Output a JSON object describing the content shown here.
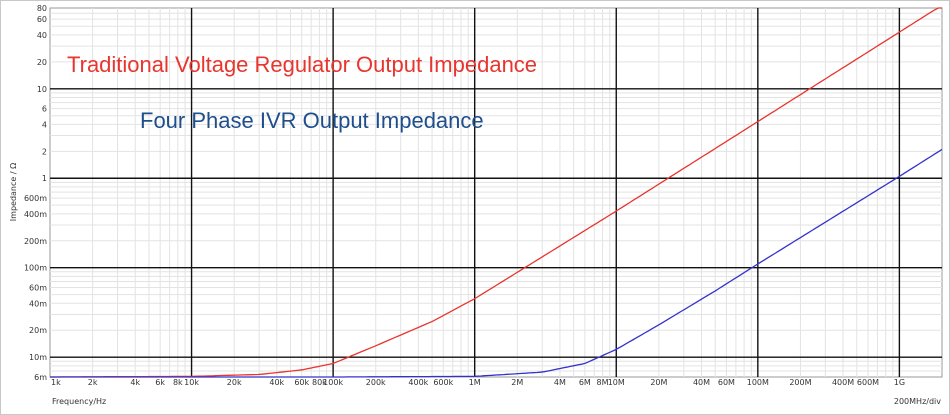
{
  "chart_data": {
    "type": "line",
    "xscale": "log",
    "yscale": "log",
    "xlim": [
      1000,
      2000000000
    ],
    "ylim": [
      0.006,
      80
    ],
    "xlabel": "Frequency/Hz",
    "ylabel": "Impedance / Ω",
    "x_div_label": "200MHz/div",
    "x_major_ticks": [
      {
        "value": 1000,
        "label": "1k"
      },
      {
        "value": 10000,
        "label": "10k"
      },
      {
        "value": 100000,
        "label": "100k"
      },
      {
        "value": 1000000,
        "label": "1M"
      },
      {
        "value": 10000000,
        "label": "10M"
      },
      {
        "value": 100000000,
        "label": "100M"
      },
      {
        "value": 1000000000,
        "label": "1G"
      }
    ],
    "x_minor_ticks": [
      {
        "value": 2000,
        "label": "2k"
      },
      {
        "value": 4000,
        "label": "4k"
      },
      {
        "value": 6000,
        "label": "6k"
      },
      {
        "value": 8000,
        "label": "8k"
      },
      {
        "value": 20000,
        "label": "20k"
      },
      {
        "value": 40000,
        "label": "40k"
      },
      {
        "value": 60000,
        "label": "60k"
      },
      {
        "value": 80000,
        "label": "80k"
      },
      {
        "value": 200000,
        "label": "200k"
      },
      {
        "value": 400000,
        "label": "400k"
      },
      {
        "value": 600000,
        "label": "600k"
      },
      {
        "value": 2000000,
        "label": "2M"
      },
      {
        "value": 4000000,
        "label": "4M"
      },
      {
        "value": 6000000,
        "label": "6M"
      },
      {
        "value": 8000000,
        "label": "8M"
      },
      {
        "value": 20000000,
        "label": "20M"
      },
      {
        "value": 40000000,
        "label": "40M"
      },
      {
        "value": 60000000,
        "label": "60M"
      },
      {
        "value": 200000000,
        "label": "200M"
      },
      {
        "value": 400000000,
        "label": "400M"
      },
      {
        "value": 600000000,
        "label": "600M"
      }
    ],
    "y_major_ticks": [
      {
        "value": 0.01,
        "label": "10m"
      },
      {
        "value": 0.1,
        "label": "100m"
      },
      {
        "value": 1,
        "label": "1"
      },
      {
        "value": 10,
        "label": "10"
      }
    ],
    "y_minor_ticks": [
      {
        "value": 0.006,
        "label": "6m"
      },
      {
        "value": 0.02,
        "label": "20m"
      },
      {
        "value": 0.04,
        "label": "40m"
      },
      {
        "value": 0.06,
        "label": "60m"
      },
      {
        "value": 0.2,
        "label": "200m"
      },
      {
        "value": 0.4,
        "label": "400m"
      },
      {
        "value": 0.6,
        "label": "600m"
      },
      {
        "value": 2,
        "label": "2"
      },
      {
        "value": 4,
        "label": "4"
      },
      {
        "value": 6,
        "label": "6"
      },
      {
        "value": 20,
        "label": "20"
      },
      {
        "value": 40,
        "label": "40"
      },
      {
        "value": 60,
        "label": "60"
      },
      {
        "value": 80,
        "label": "80"
      }
    ],
    "grid": true,
    "series": [
      {
        "name": "Traditional Voltage Regulator Output Impedance",
        "color": "#e8352e",
        "x": [
          1000,
          10000,
          30000,
          60000,
          100000,
          200000,
          500000,
          1000000,
          10000000,
          100000000,
          1000000000,
          2000000000
        ],
        "y": [
          0.006,
          0.0061,
          0.0064,
          0.0072,
          0.0085,
          0.0134,
          0.025,
          0.045,
          0.43,
          4.3,
          43,
          86
        ]
      },
      {
        "name": "Four Phase IVR Output Impedance",
        "color": "#3333cc",
        "x": [
          1000,
          100000,
          1000000,
          3000000,
          6000000,
          10000000,
          20000000,
          50000000,
          100000000,
          1000000000,
          2000000000
        ],
        "y": [
          0.006,
          0.006,
          0.0061,
          0.0068,
          0.0085,
          0.0122,
          0.023,
          0.055,
          0.11,
          1.05,
          2.1
        ]
      }
    ],
    "annotations": [
      {
        "text": "Traditional Voltage Regulator Output Impedance",
        "color": "#e8352e"
      },
      {
        "text": "Four Phase IVR Output Impedance",
        "color": "#1f4e8c"
      }
    ]
  }
}
